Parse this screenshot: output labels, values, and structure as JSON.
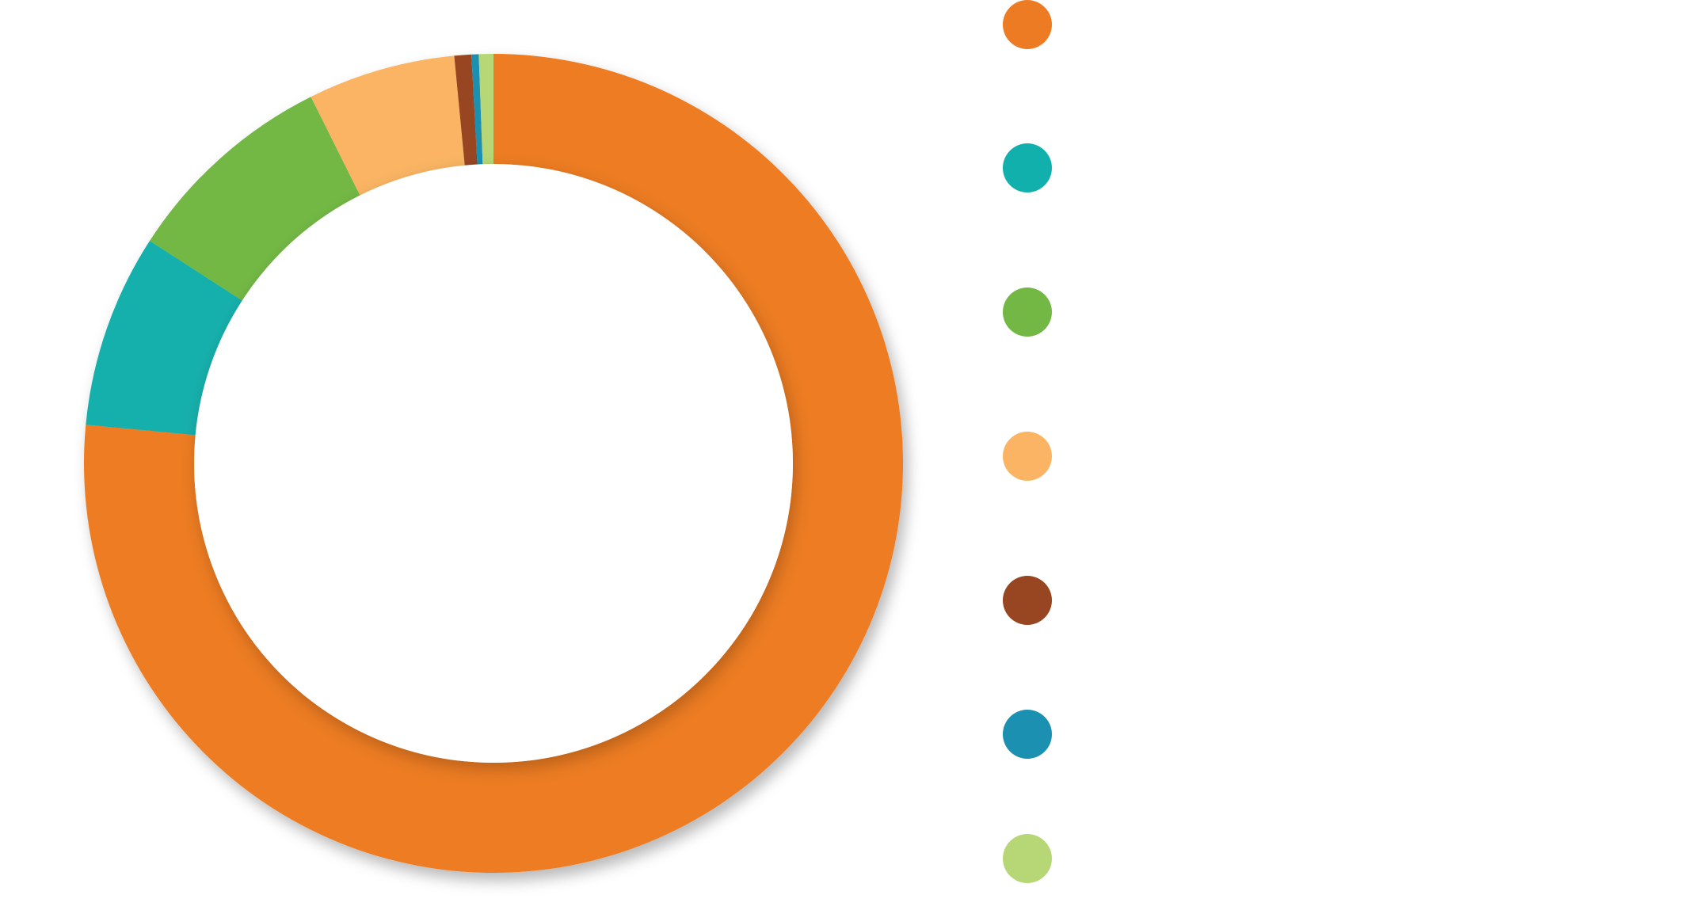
{
  "chart_data": {
    "type": "pie",
    "variant": "donut",
    "start_angle": "top",
    "direction": "clockwise",
    "legend_position": "right",
    "series": [
      {
        "value": 80.1,
        "color": "#ED7B24"
      },
      {
        "value": 8.0,
        "color": "#12B0AC"
      },
      {
        "value": 8.9,
        "color": "#73B845"
      },
      {
        "value": 6.1,
        "color": "#FAB463"
      },
      {
        "value": 0.7,
        "color": "#984522"
      },
      {
        "value": 0.3,
        "color": "#1C90B0"
      },
      {
        "value": 0.6,
        "color": "#B7D776"
      }
    ]
  }
}
